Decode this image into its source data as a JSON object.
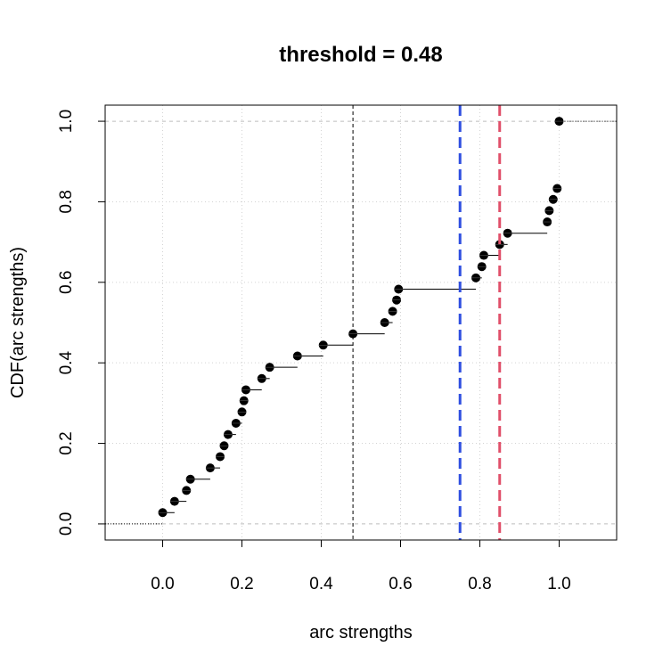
{
  "chart_data": {
    "type": "step",
    "title": "threshold =  0.48",
    "xlabel": "arc strengths",
    "ylabel": "CDF(arc strengths)",
    "xlim": [
      -0.145,
      1.145
    ],
    "ylim": [
      -0.04,
      1.04
    ],
    "x_ticks": [
      "0.0",
      "0.2",
      "0.4",
      "0.6",
      "0.8",
      "1.0"
    ],
    "y_ticks": [
      "0.0",
      "0.2",
      "0.4",
      "0.6",
      "0.8",
      "1.0"
    ],
    "grid": true,
    "threshold": 0.48,
    "vlines": [
      {
        "x": 0.48,
        "color": "#000000",
        "style": "dashed"
      },
      {
        "x": 0.75,
        "color": "#2F4FE0",
        "style": "dashed"
      },
      {
        "x": 0.85,
        "color": "#E0506A",
        "style": "dashed"
      }
    ],
    "points": [
      {
        "x": 0.0,
        "y": 0.028
      },
      {
        "x": 0.03,
        "y": 0.056
      },
      {
        "x": 0.06,
        "y": 0.083
      },
      {
        "x": 0.07,
        "y": 0.111
      },
      {
        "x": 0.12,
        "y": 0.139
      },
      {
        "x": 0.145,
        "y": 0.167
      },
      {
        "x": 0.155,
        "y": 0.194
      },
      {
        "x": 0.165,
        "y": 0.222
      },
      {
        "x": 0.185,
        "y": 0.25
      },
      {
        "x": 0.2,
        "y": 0.278
      },
      {
        "x": 0.205,
        "y": 0.306
      },
      {
        "x": 0.21,
        "y": 0.333
      },
      {
        "x": 0.25,
        "y": 0.361
      },
      {
        "x": 0.27,
        "y": 0.389
      },
      {
        "x": 0.34,
        "y": 0.417
      },
      {
        "x": 0.405,
        "y": 0.444
      },
      {
        "x": 0.48,
        "y": 0.472
      },
      {
        "x": 0.56,
        "y": 0.5
      },
      {
        "x": 0.58,
        "y": 0.528
      },
      {
        "x": 0.59,
        "y": 0.556
      },
      {
        "x": 0.595,
        "y": 0.583
      },
      {
        "x": 0.79,
        "y": 0.611
      },
      {
        "x": 0.805,
        "y": 0.639
      },
      {
        "x": 0.81,
        "y": 0.667
      },
      {
        "x": 0.85,
        "y": 0.694
      },
      {
        "x": 0.87,
        "y": 0.722
      },
      {
        "x": 0.97,
        "y": 0.75
      },
      {
        "x": 0.975,
        "y": 0.778
      },
      {
        "x": 0.985,
        "y": 0.806
      },
      {
        "x": 0.995,
        "y": 0.833
      },
      {
        "x": 1.0,
        "y": 1.0
      }
    ]
  }
}
